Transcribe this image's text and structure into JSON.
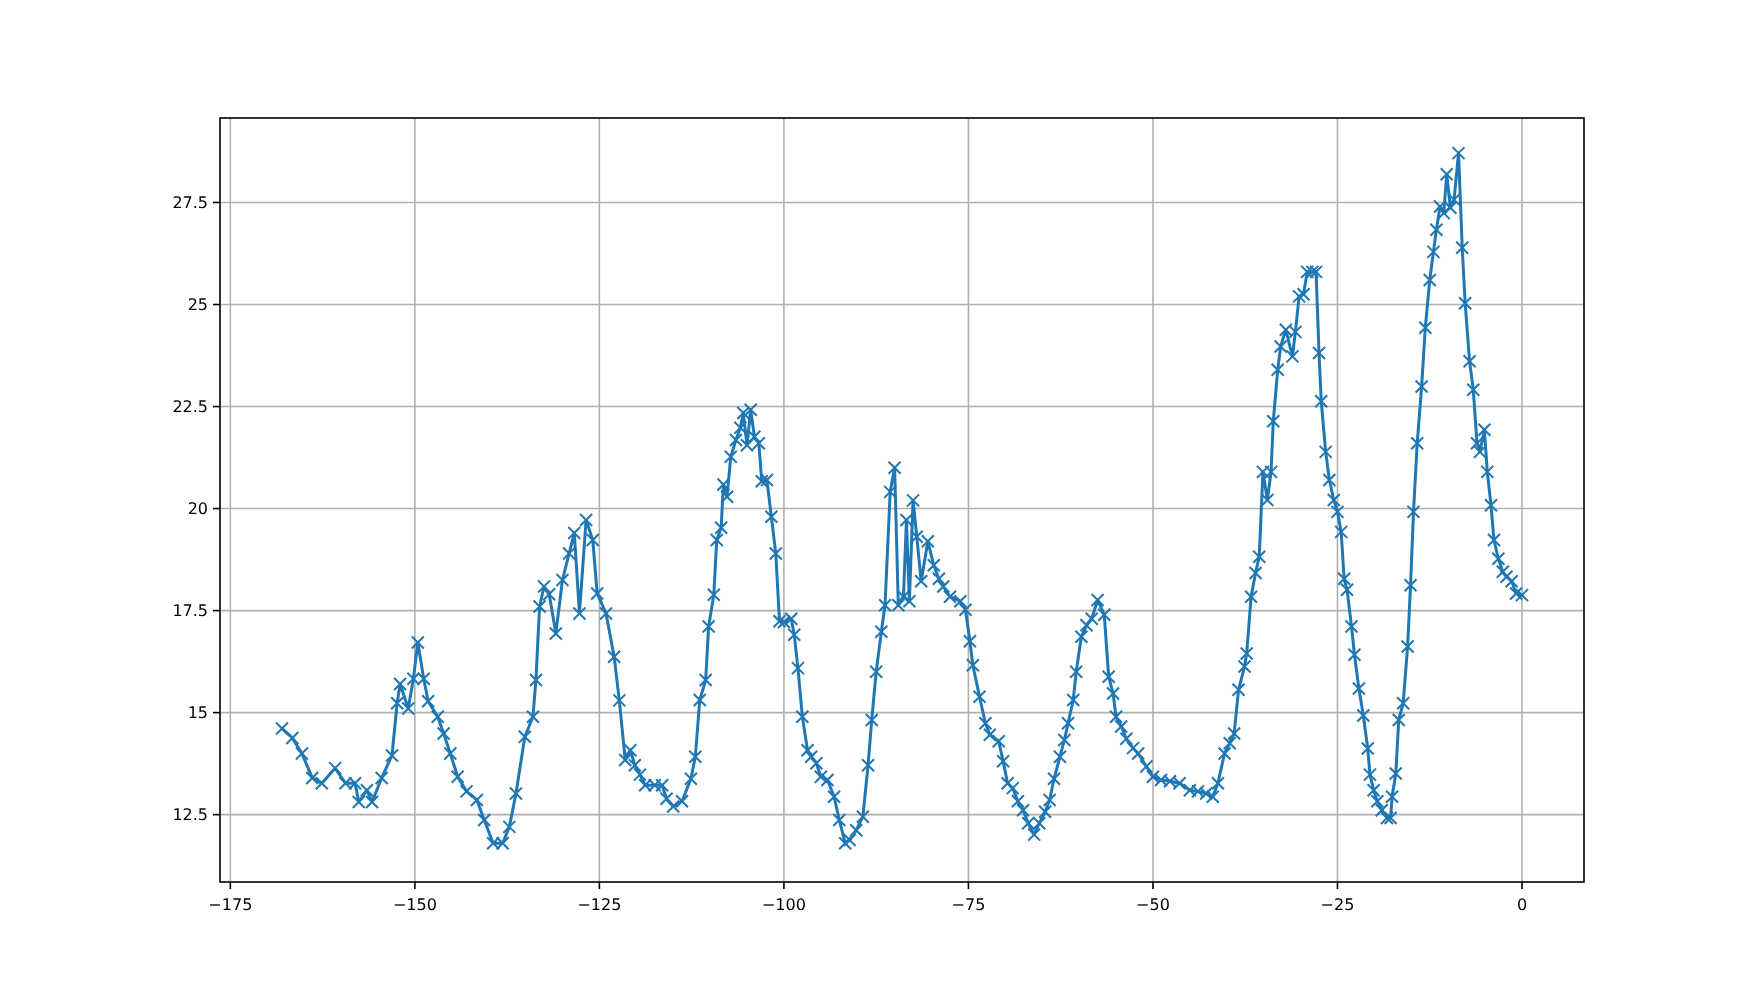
{
  "chart_data": {
    "type": "line",
    "color": "#1f77b4",
    "marker": "cross",
    "line_style": "solid",
    "grid": true,
    "xlim": [
      -176.4,
      8.4
    ],
    "ylim": [
      10.85,
      29.57
    ],
    "xticks": [
      {
        "value": -175,
        "label": "−175"
      },
      {
        "value": -150,
        "label": "−150"
      },
      {
        "value": -125,
        "label": "−125"
      },
      {
        "value": -100,
        "label": "−100"
      },
      {
        "value": -75,
        "label": "−75"
      },
      {
        "value": -50,
        "label": "−50"
      },
      {
        "value": -25,
        "label": "−25"
      },
      0
    ],
    "yticks": [
      12.5,
      15,
      17.5,
      20,
      22.5,
      25,
      27.5
    ],
    "x": [
      -168.0,
      -166.6,
      -165.3,
      -163.9,
      -162.6,
      -160.8,
      -159.4,
      -158.1,
      -157.6,
      -156.5,
      -155.8,
      -154.5,
      -153.1,
      -152.4,
      -152.0,
      -150.9,
      -150.2,
      -149.6,
      -148.8,
      -148.2,
      -146.9,
      -146.1,
      -145.2,
      -144.2,
      -143.0,
      -141.6,
      -140.6,
      -139.4,
      -138.1,
      -137.2,
      -136.3,
      -135.1,
      -134.0,
      -133.6,
      -133.1,
      -132.5,
      -131.8,
      -130.9,
      -130.0,
      -129.1,
      -128.4,
      -127.7,
      -126.8,
      -125.9,
      -125.3,
      -124.1,
      -123.0,
      -122.3,
      -121.5,
      -120.8,
      -120.2,
      -119.5,
      -118.8,
      -117.5,
      -116.5,
      -115.9,
      -115.0,
      -113.8,
      -112.6,
      -112.0,
      -111.4,
      -110.6,
      -110.2,
      -109.5,
      -109.1,
      -108.5,
      -108.2,
      -107.7,
      -107.2,
      -106.5,
      -105.9,
      -105.5,
      -105.0,
      -104.5,
      -104.0,
      -103.4,
      -103.0,
      -102.3,
      -101.7,
      -101.1,
      -100.6,
      -100.0,
      -99.0,
      -98.6,
      -98.1,
      -97.5,
      -96.8,
      -96.3,
      -95.6,
      -95.0,
      -94.1,
      -93.2,
      -92.5,
      -91.7,
      -91.1,
      -90.2,
      -89.3,
      -88.6,
      -88.1,
      -87.5,
      -86.8,
      -86.3,
      -85.6,
      -85.0,
      -84.5,
      -83.8,
      -83.4,
      -83.0,
      -82.5,
      -82.0,
      -81.4,
      -80.5,
      -79.7,
      -79.0,
      -78.4,
      -77.5,
      -76.1,
      -75.4,
      -74.8,
      -74.4,
      -73.5,
      -72.7,
      -72.1,
      -70.9,
      -70.3,
      -69.7,
      -69.0,
      -68.3,
      -67.6,
      -66.9,
      -66.1,
      -65.4,
      -64.6,
      -64.0,
      -63.4,
      -62.6,
      -62.0,
      -61.5,
      -60.8,
      -60.4,
      -59.7,
      -59.0,
      -58.3,
      -57.5,
      -56.6,
      -56.0,
      -55.4,
      -55.0,
      -54.3,
      -53.6,
      -52.7,
      -52.0,
      -50.9,
      -50.0,
      -48.9,
      -47.7,
      -46.4,
      -45.0,
      -43.9,
      -42.8,
      -41.9,
      -41.2,
      -40.3,
      -39.6,
      -39.0,
      -38.4,
      -37.6,
      -37.3,
      -36.7,
      -36.1,
      -35.6,
      -35.1,
      -34.5,
      -34.0,
      -33.7,
      -33.1,
      -32.7,
      -32.0,
      -31.1,
      -30.7,
      -30.2,
      -29.6,
      -29.1,
      -28.4,
      -27.9,
      -27.5,
      -27.2,
      -26.6,
      -26.1,
      -25.5,
      -25.0,
      -24.5,
      -24.1,
      -23.7,
      -23.1,
      -22.7,
      -22.1,
      -21.5,
      -20.9,
      -20.6,
      -20.1,
      -19.6,
      -19.0,
      -18.3,
      -17.8,
      -17.6,
      -17.1,
      -16.7,
      -16.1,
      -15.5,
      -15.1,
      -14.7,
      -14.2,
      -13.6,
      -13.1,
      -12.5,
      -12.0,
      -11.6,
      -11.1,
      -10.6,
      -10.2,
      -9.7,
      -9.2,
      -8.6,
      -8.1,
      -7.7,
      -7.1,
      -6.6,
      -6.1,
      -5.7,
      -5.1,
      -4.7,
      -4.2,
      -3.8,
      -3.2,
      -2.6,
      -2.1,
      -1.4,
      -0.8,
      0.0
    ],
    "values": [
      14.61,
      14.38,
      14.0,
      13.4,
      13.27,
      13.64,
      13.27,
      13.27,
      12.81,
      13.1,
      12.81,
      13.4,
      13.95,
      15.23,
      15.7,
      15.1,
      15.83,
      16.72,
      15.83,
      15.28,
      14.9,
      14.49,
      14.0,
      13.43,
      13.07,
      12.86,
      12.37,
      11.8,
      11.8,
      12.2,
      13.02,
      14.41,
      14.9,
      15.8,
      17.6,
      18.09,
      17.9,
      16.94,
      18.25,
      18.9,
      19.4,
      17.43,
      19.72,
      19.23,
      17.92,
      17.43,
      16.37,
      15.3,
      13.84,
      14.08,
      13.71,
      13.48,
      13.22,
      13.22,
      13.22,
      12.89,
      12.7,
      12.83,
      13.38,
      13.92,
      15.31,
      15.8,
      17.11,
      17.89,
      19.23,
      19.53,
      20.59,
      20.29,
      21.27,
      21.68,
      21.98,
      22.34,
      21.55,
      22.42,
      21.76,
      21.6,
      20.67,
      20.7,
      19.8,
      18.9,
      17.24,
      17.22,
      17.3,
      16.91,
      16.09,
      14.9,
      14.08,
      13.92,
      13.76,
      13.43,
      13.35,
      12.94,
      12.37,
      11.8,
      11.88,
      12.12,
      12.45,
      13.71,
      14.82,
      16.0,
      16.98,
      17.63,
      20.41,
      21.0,
      17.63,
      17.84,
      19.72,
      17.73,
      20.2,
      19.31,
      18.22,
      19.2,
      18.61,
      18.28,
      18.09,
      17.84,
      17.73,
      17.52,
      16.75,
      16.16,
      15.39,
      14.74,
      14.46,
      14.3,
      13.81,
      13.27,
      13.15,
      12.83,
      12.61,
      12.29,
      12.01,
      12.29,
      12.57,
      12.86,
      13.38,
      13.92,
      14.33,
      14.74,
      15.31,
      16.0,
      16.86,
      17.14,
      17.3,
      17.76,
      17.4,
      15.88,
      15.47,
      14.9,
      14.66,
      14.36,
      14.13,
      14.0,
      13.68,
      13.43,
      13.35,
      13.32,
      13.27,
      13.1,
      13.07,
      13.02,
      12.94,
      13.27,
      14.0,
      14.25,
      14.49,
      15.56,
      16.13,
      16.45,
      17.84,
      18.42,
      18.82,
      20.9,
      20.21,
      20.9,
      22.14,
      23.4,
      23.97,
      24.38,
      23.73,
      24.33,
      25.2,
      25.25,
      25.8,
      25.8,
      25.8,
      23.81,
      22.63,
      21.39,
      20.7,
      20.21,
      19.92,
      19.43,
      18.28,
      18.01,
      17.11,
      16.42,
      15.59,
      14.93,
      14.12,
      13.48,
      13.1,
      12.83,
      12.61,
      12.42,
      12.42,
      12.94,
      13.51,
      14.82,
      15.23,
      16.62,
      18.12,
      19.92,
      21.6,
      22.99,
      24.43,
      25.6,
      26.29,
      26.83,
      27.4,
      27.24,
      28.19,
      27.37,
      27.57,
      28.71,
      26.39,
      25.03,
      23.61,
      22.91,
      21.6,
      21.39,
      21.93,
      20.9,
      20.08,
      19.23,
      18.77,
      18.45,
      18.33,
      18.22,
      17.92,
      17.88
    ]
  }
}
